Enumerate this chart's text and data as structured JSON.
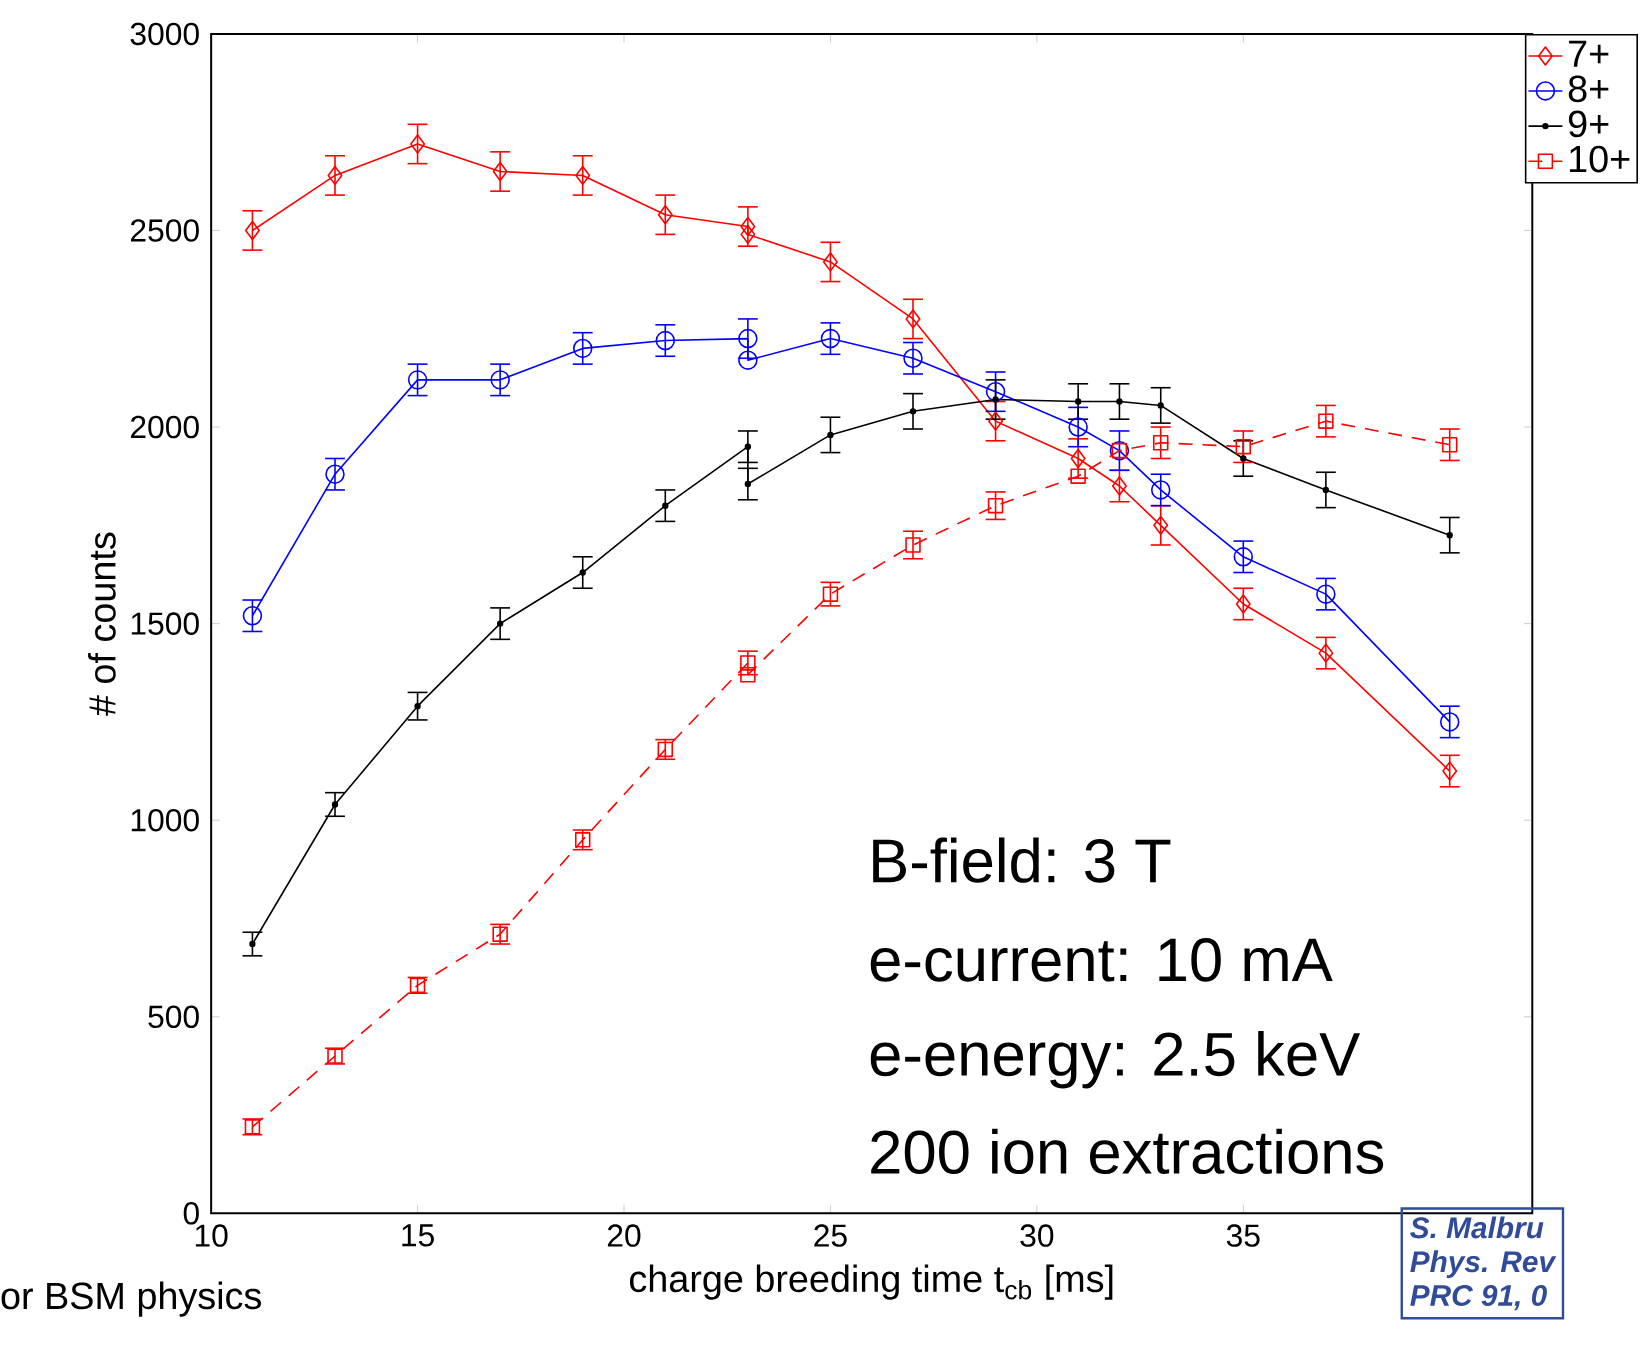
{
  "chart_data": {
    "type": "line",
    "xlabel": "charge breeding time t$_{cb}$ [ms]",
    "ylabel": "# of counts",
    "xlim": [
      10,
      42
    ],
    "ylim": [
      0,
      3000
    ],
    "xticks": [
      10,
      15,
      20,
      25,
      30,
      35
    ],
    "yticks": [
      0,
      500,
      1000,
      1500,
      2000,
      2500,
      3000
    ],
    "legend": "top right",
    "grid": false,
    "series": [
      {
        "name": "7+",
        "color": "#ff0000",
        "marker": "diamond",
        "line_style": "solid",
        "x": [
          11,
          13,
          15,
          17,
          19,
          21,
          23,
          23,
          25,
          27,
          29,
          31,
          32,
          33,
          35,
          37,
          40
        ],
        "values": [
          2500,
          2640,
          2720,
          2650,
          2640,
          2540,
          2510,
          2490,
          2420,
          2275,
          2015,
          1920,
          1850,
          1750,
          1550,
          1425,
          1125
        ],
        "errors": [
          50,
          50,
          50,
          50,
          50,
          50,
          50,
          null,
          50,
          50,
          50,
          50,
          40,
          50,
          40,
          40,
          40
        ]
      },
      {
        "name": "8+",
        "color": "#0000ff",
        "marker": "circle",
        "line_style": "solid",
        "x": [
          11,
          13,
          15,
          17,
          19,
          21,
          23,
          23,
          25,
          27,
          29,
          31,
          32,
          33,
          35,
          37,
          40
        ],
        "values": [
          1520,
          1880,
          2120,
          2120,
          2200,
          2220,
          2225,
          2170,
          2225,
          2175,
          2090,
          2000,
          1940,
          1840,
          1670,
          1575,
          1250
        ],
        "errors": [
          40,
          40,
          40,
          40,
          40,
          40,
          50,
          null,
          40,
          40,
          50,
          50,
          50,
          40,
          40,
          40,
          40
        ]
      },
      {
        "name": "9+",
        "color": "#000000",
        "marker": "dot",
        "line_style": "solid",
        "x": [
          11,
          13,
          15,
          17,
          19,
          21,
          23,
          23,
          25,
          27,
          29,
          31,
          32,
          33,
          35,
          37,
          40
        ],
        "values": [
          685,
          1040,
          1290,
          1500,
          1630,
          1800,
          1950,
          1855,
          1980,
          2040,
          2070,
          2065,
          2065,
          2055,
          1920,
          1840,
          1725
        ],
        "errors": [
          30,
          30,
          35,
          40,
          40,
          40,
          40,
          40,
          45,
          45,
          50,
          45,
          45,
          45,
          45,
          45,
          45
        ]
      },
      {
        "name": "10+",
        "color": "#ff0000",
        "marker": "square",
        "line_style": "dashed",
        "x": [
          11,
          13,
          15,
          17,
          19,
          21,
          23,
          23,
          25,
          27,
          29,
          31,
          32,
          33,
          35,
          37,
          40
        ],
        "values": [
          220,
          400,
          580,
          710,
          950,
          1180,
          1400,
          1370,
          1575,
          1700,
          1800,
          1875,
          1940,
          1960,
          1950,
          2015,
          1955
        ],
        "errors": [
          20,
          20,
          20,
          25,
          25,
          25,
          30,
          null,
          30,
          35,
          35,
          null,
          null,
          40,
          40,
          40,
          40
        ]
      }
    ],
    "annotations": [
      "B-field: 3 T",
      "e-current: 10 mA",
      "e-energy: 2.5 keV",
      "200 ion extractions",
      "or BSM physics",
      "S. Malbru",
      "Phys. Rev",
      "PRC 91, 0"
    ]
  }
}
